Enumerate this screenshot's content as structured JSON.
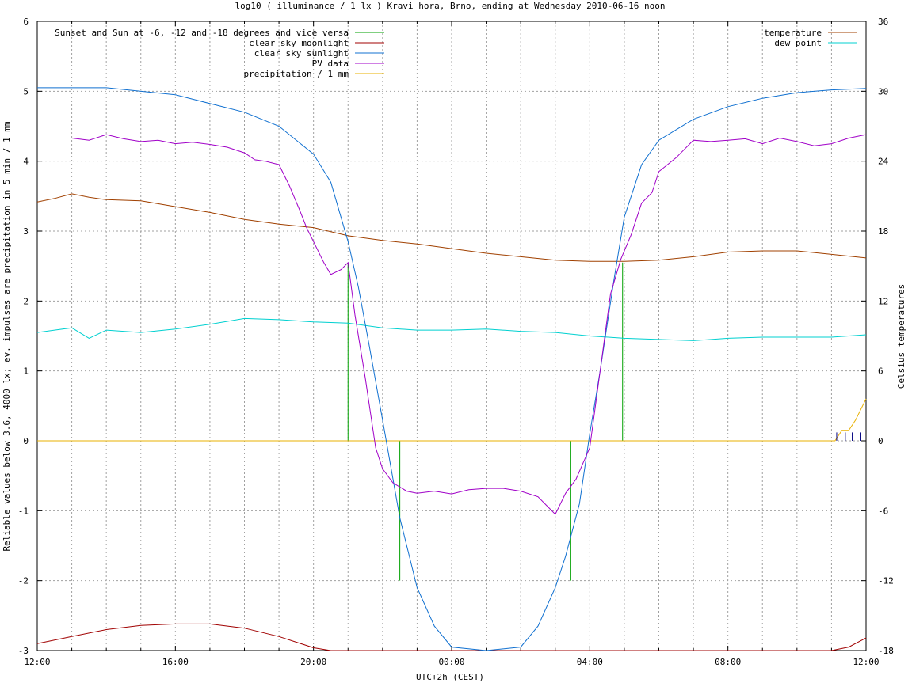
{
  "chart_data": {
    "type": "line",
    "title": "log10 ( illuminance / 1 lx ) Kravi hora, Brno, ending at Wednesday 2010-06-16 noon",
    "xlabel": "UTC+2h (CEST)",
    "ylabel": "Reliable values below 3.6, 4000 lx; ev. impulses are precipitation in 5 min / 1 mm",
    "y2label": "Celsius temperatures",
    "xlim": [
      12,
      36
    ],
    "ylim": [
      -3,
      6
    ],
    "y2lim": [
      -18,
      36
    ],
    "grid": true,
    "x_ticks": [
      {
        "x": 12,
        "label": "12:00"
      },
      {
        "x": 16,
        "label": "16:00"
      },
      {
        "x": 20,
        "label": "20:00"
      },
      {
        "x": 24,
        "label": "00:00"
      },
      {
        "x": 28,
        "label": "04:00"
      },
      {
        "x": 32,
        "label": "08:00"
      },
      {
        "x": 36,
        "label": "12:00"
      }
    ],
    "y_ticks": [
      {
        "y": 6,
        "label": "6"
      },
      {
        "y": 5,
        "label": "5"
      },
      {
        "y": 4,
        "label": "4"
      },
      {
        "y": 3,
        "label": "3"
      },
      {
        "y": 2,
        "label": "2"
      },
      {
        "y": 1,
        "label": "1"
      },
      {
        "y": 0,
        "label": "0"
      },
      {
        "y": -1,
        "label": "-1"
      },
      {
        "y": -2,
        "label": "-2"
      },
      {
        "y": -3,
        "label": "-3"
      }
    ],
    "y2_ticks": [
      {
        "y": 36,
        "label": "36"
      },
      {
        "y": 30,
        "label": "30"
      },
      {
        "y": 24,
        "label": "24"
      },
      {
        "y": 18,
        "label": "18"
      },
      {
        "y": 12,
        "label": "12"
      },
      {
        "y": 6,
        "label": "6"
      },
      {
        "y": 0,
        "label": "0"
      },
      {
        "y": -6,
        "label": "-6"
      },
      {
        "y": -12,
        "label": "-12"
      },
      {
        "y": -18,
        "label": "-18"
      }
    ],
    "legend_left": {
      "placement": "top-left",
      "entries": [
        {
          "name": "Sunset and Sun at -6, -12 and -18 degrees and vice versa",
          "color": "#00a000"
        },
        {
          "name": "clear sky moonlight",
          "color": "#a00000"
        },
        {
          "name": "clear sky sunlight",
          "color": "#1070d0"
        },
        {
          "name": "PV data",
          "color": "#a000c8"
        },
        {
          "name": "precipitation / 1 mm",
          "color": "#e8b000"
        }
      ]
    },
    "legend_right": {
      "placement": "top-right",
      "entries": [
        {
          "name": "temperature",
          "color": "#a04000"
        },
        {
          "name": "dew point",
          "color": "#00d0d0"
        }
      ]
    },
    "series": [
      {
        "key": "sunlight",
        "color": "#1070d0",
        "axis": "y1",
        "x": [
          12,
          14,
          16,
          18,
          19,
          20,
          20.5,
          21,
          21.3,
          21.6,
          22,
          22.5,
          23,
          23.5,
          24,
          25,
          26,
          26.5,
          27,
          27.3,
          27.7,
          28,
          28.3,
          28.7,
          29,
          29.5,
          30,
          31,
          32,
          33,
          34,
          35,
          36
        ],
        "y": [
          5.05,
          5.05,
          4.95,
          4.7,
          4.5,
          4.1,
          3.7,
          2.85,
          2.2,
          1.4,
          0.3,
          -1.1,
          -2.1,
          -2.65,
          -2.95,
          -3.1,
          -2.95,
          -2.65,
          -2.1,
          -1.65,
          -0.9,
          0.1,
          1.0,
          2.3,
          3.2,
          3.95,
          4.3,
          4.6,
          4.78,
          4.9,
          4.98,
          5.02,
          5.04
        ]
      },
      {
        "key": "moonlight",
        "color": "#a00000",
        "axis": "y1",
        "x": [
          12,
          13,
          14,
          15,
          16,
          17,
          18,
          19,
          20,
          20.5,
          35,
          35.5,
          36
        ],
        "y": [
          -2.9,
          -2.8,
          -2.7,
          -2.64,
          -2.62,
          -2.62,
          -2.68,
          -2.8,
          -2.96,
          -3.05,
          -3.05,
          -2.95,
          -2.82
        ]
      },
      {
        "key": "pv",
        "color": "#a000c8",
        "axis": "y1",
        "x": [
          13,
          13.5,
          14,
          14.5,
          15,
          15.5,
          16,
          16.5,
          17,
          17.5,
          18,
          18.3,
          18.6,
          19,
          19.3,
          19.6,
          19.8,
          20,
          20.3,
          20.5,
          20.8,
          21,
          21.2,
          21.5,
          21.8,
          22,
          22.3,
          22.7,
          23,
          23.5,
          24,
          24.5,
          25,
          25.5,
          26,
          26.5,
          26.8,
          27,
          27.3,
          27.6,
          28,
          28.3,
          28.6,
          28.9,
          29.2,
          29.5,
          29.8,
          30,
          30.5,
          31,
          31.5,
          32,
          32.5,
          33,
          33.5,
          34,
          34.5,
          35,
          35.5,
          36
        ],
        "y": [
          4.33,
          4.3,
          4.38,
          4.32,
          4.28,
          4.3,
          4.25,
          4.27,
          4.24,
          4.2,
          4.12,
          4.02,
          4.0,
          3.95,
          3.65,
          3.3,
          3.05,
          2.85,
          2.55,
          2.38,
          2.45,
          2.55,
          1.8,
          0.9,
          -0.1,
          -0.4,
          -0.6,
          -0.72,
          -0.75,
          -0.72,
          -0.76,
          -0.7,
          -0.68,
          -0.68,
          -0.72,
          -0.8,
          -0.95,
          -1.05,
          -0.75,
          -0.55,
          -0.1,
          1.0,
          2.1,
          2.6,
          2.95,
          3.4,
          3.55,
          3.85,
          4.05,
          4.3,
          4.28,
          4.3,
          4.32,
          4.25,
          4.33,
          4.28,
          4.22,
          4.25,
          4.33,
          4.38
        ]
      },
      {
        "key": "temperature",
        "color": "#a04000",
        "axis": "y2",
        "x": [
          12,
          12.5,
          13,
          13.5,
          14,
          15,
          16,
          17,
          18,
          19,
          20,
          21,
          22,
          23,
          24,
          25,
          26,
          27,
          28,
          29,
          30,
          31,
          32,
          33,
          34,
          35,
          36
        ],
        "y": [
          20.5,
          20.8,
          21.2,
          20.9,
          20.7,
          20.6,
          20.1,
          19.6,
          19.0,
          18.6,
          18.3,
          17.6,
          17.2,
          16.9,
          16.5,
          16.1,
          15.8,
          15.5,
          15.4,
          15.4,
          15.5,
          15.8,
          16.2,
          16.3,
          16.3,
          16.0,
          15.7
        ]
      },
      {
        "key": "dewpoint",
        "color": "#00d0d0",
        "axis": "y2",
        "x": [
          12,
          12.5,
          13,
          13.5,
          14,
          15,
          16,
          17,
          18,
          19,
          20,
          21,
          22,
          23,
          24,
          25,
          26,
          27,
          28,
          29,
          30,
          31,
          32,
          33,
          34,
          35,
          36
        ],
        "y": [
          9.3,
          9.5,
          9.7,
          8.8,
          9.5,
          9.3,
          9.6,
          10.0,
          10.5,
          10.4,
          10.2,
          10.1,
          9.7,
          9.5,
          9.5,
          9.6,
          9.4,
          9.3,
          9.0,
          8.8,
          8.7,
          8.6,
          8.8,
          8.9,
          8.9,
          8.9,
          9.1
        ]
      },
      {
        "key": "precipitation_line",
        "color": "#e8b000",
        "axis": "y1",
        "x": [
          12,
          35.1,
          35.3,
          35.5,
          35.7,
          35.9,
          36
        ],
        "y": [
          0,
          0,
          0.15,
          0.15,
          0.3,
          0.5,
          0.6
        ]
      }
    ],
    "sun_markers": [
      {
        "x": 21.0,
        "y": 2.55
      },
      {
        "x": 22.5,
        "y": -2.0
      },
      {
        "x": 27.45,
        "y": -2.0
      },
      {
        "x": 28.95,
        "y": 2.55
      }
    ],
    "precip_impulses": [
      {
        "x": 35.15,
        "y": 0.12
      },
      {
        "x": 35.4,
        "y": 0.12
      },
      {
        "x": 35.6,
        "y": 0.12
      },
      {
        "x": 35.85,
        "y": 0.12
      }
    ]
  }
}
